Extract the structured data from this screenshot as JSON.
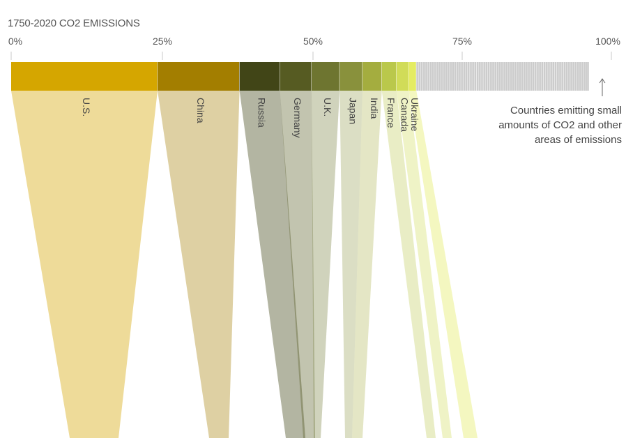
{
  "chart_data": {
    "type": "bar",
    "title": "1750-2020 CO2 EMISSIONS",
    "x_unit": "percent of cumulative emissions",
    "xlim": [
      0,
      100
    ],
    "tick_labels": [
      "0%",
      "25%",
      "50%",
      "75%",
      "100%"
    ],
    "tick_values": [
      0,
      25,
      50,
      75,
      100
    ],
    "orientation": "stacked horizontal bar with vertical labels and ribbons",
    "categories": [
      "U.S.",
      "China",
      "Russia",
      "Germany",
      "U.K.",
      "Japan",
      "India",
      "France",
      "Canada",
      "Ukraine"
    ],
    "values": [
      25.0,
      14.0,
      6.9,
      5.4,
      4.8,
      3.9,
      3.3,
      2.5,
      2.1,
      1.3
    ],
    "colors": [
      "#d5a600",
      "#a37e00",
      "#414517",
      "#565b22",
      "#6e7530",
      "#89913c",
      "#a4ad3f",
      "#bac84b",
      "#d1dc58",
      "#e4ec62"
    ],
    "rest_label": "Countries emitting small amounts of CO2 and other areas of emissions",
    "rest_color": "#cccccc"
  }
}
